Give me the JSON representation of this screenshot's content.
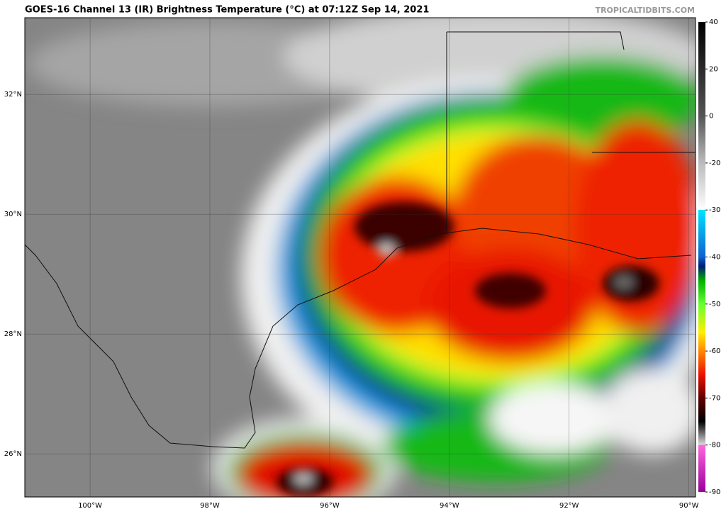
{
  "header": {
    "title": "GOES-16 Channel 13 (IR) Brightness Temperature (°C) at 07:12Z Sep 14, 2021",
    "credit": "TROPICALTIDBITS.COM"
  },
  "map": {
    "lonlim": [
      -101.09,
      -89.89
    ],
    "latlim": [
      25.28,
      33.28
    ],
    "lat_ticks": [
      {
        "value": 32,
        "label": "32°N"
      },
      {
        "value": 30,
        "label": "30°N"
      },
      {
        "value": 28,
        "label": "28°N"
      },
      {
        "value": 26,
        "label": "26°N"
      }
    ],
    "lon_ticks": [
      {
        "value": -100,
        "label": "100°W"
      },
      {
        "value": -98,
        "label": "98°W"
      },
      {
        "value": -96,
        "label": "96°W"
      },
      {
        "value": -94,
        "label": "94°W"
      },
      {
        "value": -92,
        "label": "92°W"
      },
      {
        "value": -90,
        "label": "90°W"
      }
    ]
  },
  "colorbar": {
    "ticks": [
      40,
      20,
      0,
      -20,
      -30,
      -40,
      -50,
      -60,
      -70,
      -80,
      -90
    ]
  }
}
